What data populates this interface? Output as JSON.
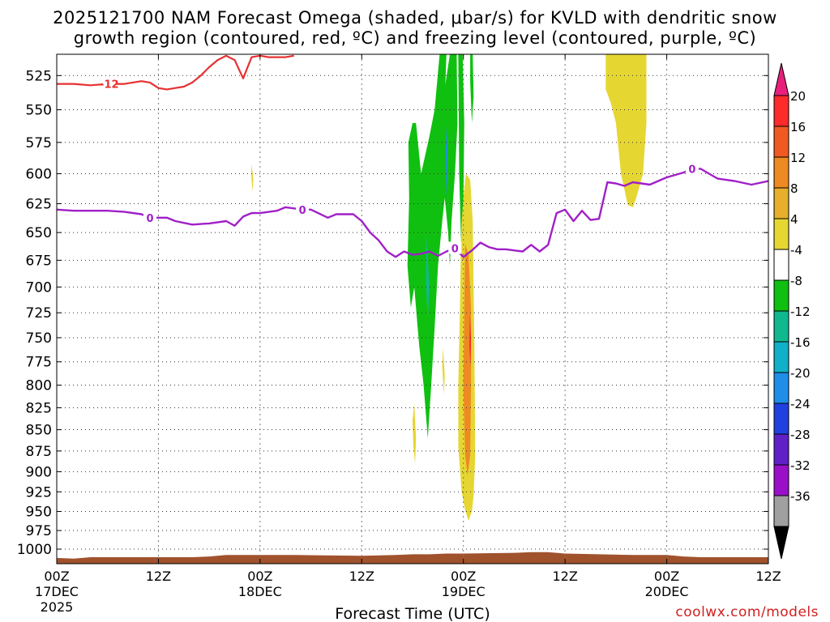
{
  "title": {
    "line1": "2025121700 NAM Forecast Omega (shaded, μbar/s) for KVLD with dendritic snow",
    "line2": "growth region (contoured, red, ºC) and freezing level (contoured, purple, ºC)"
  },
  "credit": "coolwx.com/models",
  "chart_data": {
    "type": "heatmap",
    "xlabel": "Forecast Time (UTC)",
    "x_unit": "hours since 2025-12-17 00Z",
    "xlim": [
      0,
      84
    ],
    "x_ticks": [
      {
        "x": 0,
        "label": "00Z",
        "sub": "17DEC",
        "sub2": "2025"
      },
      {
        "x": 12,
        "label": "12Z",
        "sub": "",
        "sub2": ""
      },
      {
        "x": 24,
        "label": "00Z",
        "sub": "18DEC",
        "sub2": ""
      },
      {
        "x": 36,
        "label": "12Z",
        "sub": "",
        "sub2": ""
      },
      {
        "x": 48,
        "label": "00Z",
        "sub": "19DEC",
        "sub2": ""
      },
      {
        "x": 60,
        "label": "12Z",
        "sub": "",
        "sub2": ""
      },
      {
        "x": 72,
        "label": "00Z",
        "sub": "20DEC",
        "sub2": ""
      },
      {
        "x": 84,
        "label": "12Z",
        "sub": "",
        "sub2": ""
      }
    ],
    "y_unit": "hPa",
    "y_log": true,
    "ylim": [
      1020,
      510
    ],
    "y_ticks": [
      525,
      550,
      575,
      600,
      625,
      650,
      675,
      700,
      725,
      750,
      775,
      800,
      825,
      850,
      875,
      900,
      925,
      950,
      975,
      1000
    ],
    "grid": true,
    "colorbar": {
      "labels": [
        "20",
        "16",
        "12",
        "8",
        "4",
        "-4",
        "-8",
        "-12",
        "-16",
        "-20",
        "-24",
        "-28",
        "-32",
        "-36"
      ],
      "colors": [
        "#ff2a2a",
        "#f05a22",
        "#ee8a22",
        "#e6b02c",
        "#e6d632",
        "#ffffff",
        "#10c010",
        "#10b890",
        "#10b0c8",
        "#1e8ee8",
        "#2040e0",
        "#6020c8",
        "#9a10c8",
        "#a0a0a0"
      ],
      "top_arrow": "#e8207c",
      "bottom_arrow": "#000000"
    },
    "freezing_level": {
      "label": "0",
      "color": "#a020c8",
      "x": [
        0,
        2,
        4,
        6,
        8,
        10,
        11,
        12,
        13,
        14,
        16,
        18,
        20,
        21,
        22,
        23,
        24,
        26,
        27,
        28,
        29,
        30,
        32,
        33,
        34,
        35,
        36,
        37,
        38,
        39,
        40,
        41,
        42,
        43,
        44,
        45,
        46,
        47,
        48,
        49,
        50,
        51,
        52,
        53,
        54,
        55,
        56,
        57,
        58,
        59,
        60,
        61,
        62,
        63,
        64,
        65,
        66,
        67,
        68,
        69,
        70,
        71,
        72,
        74,
        75,
        76,
        77,
        78,
        80,
        82,
        84
      ],
      "y": [
        630,
        631,
        631,
        631,
        632,
        634,
        637,
        637,
        637,
        640,
        643,
        642,
        640,
        644,
        636,
        633,
        633,
        631,
        628,
        629,
        630,
        630,
        637,
        634,
        634,
        634,
        640,
        650,
        657,
        667,
        672,
        667,
        670,
        669,
        667,
        671,
        667,
        664,
        672,
        666,
        659,
        663,
        665,
        665,
        666,
        667,
        661,
        667,
        661,
        633,
        630,
        640,
        631,
        639,
        638,
        607,
        608,
        610,
        607,
        608,
        609,
        606,
        603,
        599,
        596,
        596,
        600,
        604,
        606,
        609,
        606
      ]
    },
    "dgz_contour": {
      "label": "-12",
      "color": "#e83030",
      "x": [
        0,
        2,
        4,
        6,
        8,
        10,
        11,
        12,
        13,
        14,
        15,
        16,
        17,
        18,
        19,
        20,
        21,
        22,
        23,
        24,
        25,
        26,
        27,
        28
      ],
      "y": [
        531,
        531,
        532,
        531,
        531,
        529,
        530,
        534,
        535,
        534,
        533,
        530,
        525,
        519,
        514,
        511,
        514,
        527,
        512,
        511,
        512,
        512,
        512,
        511
      ]
    },
    "shaded_regions": [
      {
        "name": "green-upper-band",
        "color": "#10c010",
        "x": [
          41.5,
          42,
          42.4,
          43,
          44,
          44.6,
          45.2,
          46,
          45.6,
          45.4,
          45.2,
          46.4,
          47.2,
          47.3,
          47,
          46.6,
          46.4,
          46.2,
          45.8,
          45.5,
          45,
          44.6,
          44.2,
          43.8,
          43.3,
          42.8,
          42.6,
          42.2,
          41.8,
          41.4,
          41.6
        ],
        "y": [
          575,
          560,
          560,
          600,
          570,
          550,
          510,
          510,
          580,
          620,
          560,
          510,
          510,
          560,
          600,
          640,
          680,
          650,
          620,
          640,
          680,
          740,
          800,
          860,
          800,
          760,
          740,
          700,
          720,
          680,
          620
        ]
      },
      {
        "name": "green-right-strip",
        "color": "#10c010",
        "x": [
          47.4,
          47.9,
          48.1,
          48.0,
          47.8,
          47.5
        ],
        "y": [
          510,
          510,
          560,
          620,
          680,
          600
        ]
      },
      {
        "name": "green-thin-strip",
        "color": "#10c010",
        "x": [
          48.8,
          49.1,
          49.2,
          49.0,
          48.8
        ],
        "y": [
          510,
          510,
          540,
          560,
          530
        ]
      },
      {
        "name": "green-teal-spot",
        "color": "#10b890",
        "x": [
          43.6,
          44.0,
          43.8,
          43.6
        ],
        "y": [
          650,
          700,
          730,
          700
        ]
      },
      {
        "name": "blue-sliver",
        "color": "#1e8ee8",
        "x": [
          45.9,
          46.1,
          46.0,
          45.85
        ],
        "y": [
          560,
          580,
          620,
          590
        ]
      },
      {
        "name": "yellow-main",
        "color": "#e6d632",
        "x": [
          48,
          48.3,
          48.8,
          49.1,
          49.3,
          49.4,
          49.2,
          49.0,
          48.6,
          48.2,
          47.8,
          47.4,
          47.4,
          47.6,
          47.7,
          47.8
        ],
        "y": [
          620,
          600,
          605,
          640,
          760,
          880,
          930,
          950,
          962,
          948,
          925,
          870,
          800,
          720,
          660,
          640
        ]
      },
      {
        "name": "yellow-left-lobe",
        "color": "#e6d632",
        "x": [
          42.2,
          42.4,
          42.3,
          42.1,
          42.0
        ],
        "y": [
          820,
          860,
          890,
          870,
          840
        ]
      },
      {
        "name": "yellow-mid-sliver",
        "color": "#e6d632",
        "x": [
          45.6,
          45.8,
          45.7,
          45.5
        ],
        "y": [
          760,
          790,
          810,
          780
        ]
      },
      {
        "name": "yellow-small-top",
        "color": "#e6d632",
        "x": [
          23.0,
          23.2,
          23.1,
          22.95
        ],
        "y": [
          592,
          605,
          615,
          600
        ]
      },
      {
        "name": "yellow-upper-right",
        "color": "#e6d632",
        "x": [
          64.8,
          69.6,
          69.6,
          69.2,
          68.8,
          68.4,
          68.0,
          67.4,
          66.6,
          66.0,
          65.4,
          64.8
        ],
        "y": [
          510,
          510,
          560,
          600,
          610,
          620,
          628,
          626,
          600,
          560,
          545,
          535
        ]
      },
      {
        "name": "orange-core",
        "color": "#ee8a22",
        "x": [
          48.2,
          48.6,
          48.9,
          48.9,
          48.8,
          48.5,
          48.2,
          48.0,
          48.1
        ],
        "y": [
          660,
          670,
          720,
          800,
          880,
          905,
          880,
          800,
          720
        ]
      },
      {
        "name": "red-core",
        "color": "#ff2a2a",
        "x": [
          48.75,
          48.9,
          48.85,
          48.7
        ],
        "y": [
          725,
          750,
          780,
          760
        ]
      }
    ],
    "terrain": {
      "color": "#a0522d",
      "x": [
        0,
        2,
        4,
        6,
        10,
        14,
        16,
        18,
        20,
        28,
        36,
        40,
        42,
        44,
        46,
        48,
        54,
        56,
        58,
        60,
        64,
        68,
        72,
        74,
        76,
        84
      ],
      "y": [
        1012,
        1013,
        1011,
        1011,
        1011,
        1011,
        1011,
        1010,
        1008,
        1008,
        1009,
        1008,
        1007,
        1007,
        1006,
        1006,
        1005,
        1004,
        1004,
        1006,
        1007,
        1008,
        1008,
        1010,
        1011,
        1011
      ]
    }
  }
}
